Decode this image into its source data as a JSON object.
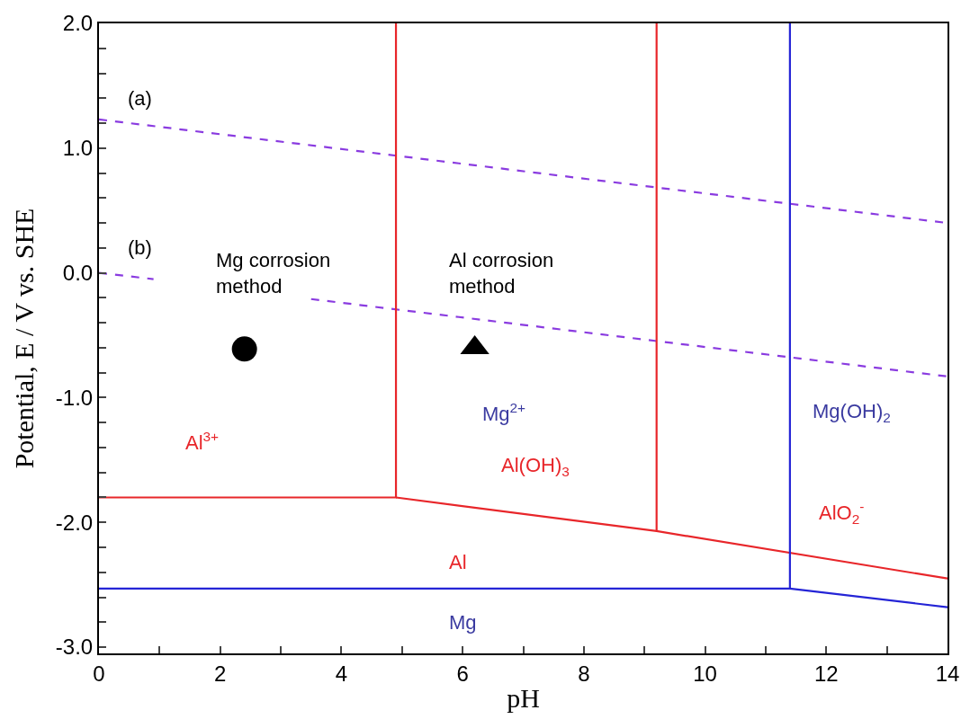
{
  "chart_data": {
    "type": "line",
    "xlabel": "pH",
    "ylabel": "Potential, E / V vs. SHE",
    "xlim": [
      0,
      14
    ],
    "ylim": [
      -3.05,
      2.0
    ],
    "xticks": [
      0,
      {
        "value": 1,
        "label": null
      },
      2,
      {
        "value": 3,
        "label": null
      },
      4,
      {
        "value": 5,
        "label": null
      },
      6,
      {
        "value": 7,
        "label": null
      },
      8,
      {
        "value": 9,
        "label": null
      },
      10,
      {
        "value": 11,
        "label": null
      },
      12,
      {
        "value": 13,
        "label": null
      },
      14
    ],
    "yticks": [
      {
        "value": -3.0,
        "label": "-3.0"
      },
      {
        "value": -2.8,
        "label": null
      },
      {
        "value": -2.6,
        "label": null
      },
      {
        "value": -2.4,
        "label": null
      },
      {
        "value": -2.2,
        "label": null
      },
      {
        "value": -2.0,
        "label": "-2.0"
      },
      {
        "value": -1.8,
        "label": null
      },
      {
        "value": -1.6,
        "label": null
      },
      {
        "value": -1.4,
        "label": null
      },
      {
        "value": -1.2,
        "label": null
      },
      {
        "value": -1.0,
        "label": "-1.0"
      },
      {
        "value": -0.8,
        "label": null
      },
      {
        "value": -0.6,
        "label": null
      },
      {
        "value": -0.4,
        "label": null
      },
      {
        "value": -0.2,
        "label": null
      },
      {
        "value": 0.0,
        "label": "0.0"
      },
      {
        "value": 0.2,
        "label": null
      },
      {
        "value": 0.4,
        "label": null
      },
      {
        "value": 0.6,
        "label": null
      },
      {
        "value": 0.8,
        "label": null
      },
      {
        "value": 1.0,
        "label": "1.0"
      },
      {
        "value": 1.2,
        "label": null
      },
      {
        "value": 1.4,
        "label": null
      },
      {
        "value": 1.6,
        "label": null
      },
      {
        "value": 1.8,
        "label": null
      },
      {
        "value": 2.0,
        "label": "2.0"
      }
    ],
    "series": [
      {
        "color": "#8a3be0",
        "line_style": "dashed",
        "x": [
          0,
          14
        ],
        "values": [
          1.23,
          0.4
        ]
      },
      {
        "color": "#8a3be0",
        "line_style": "dashed",
        "x": [
          0,
          0.9,
          2.2,
          3.5,
          14
        ],
        "values": [
          0.0,
          -0.05,
          null,
          -0.21,
          -0.83
        ]
      },
      {
        "color": "#e8262a",
        "x": [
          0,
          4.9,
          4.9
        ],
        "values": [
          -1.8,
          -1.8,
          2.0
        ]
      },
      {
        "color": "#e8262a",
        "x": [
          4.9,
          9.2,
          14
        ],
        "values": [
          -1.8,
          -2.07,
          -2.45
        ]
      },
      {
        "color": "#e8262a",
        "x": [
          9.2,
          9.2
        ],
        "values": [
          -2.07,
          2.0
        ]
      },
      {
        "color": "#2424d6",
        "x": [
          0,
          11.4,
          14
        ],
        "values": [
          -2.53,
          -2.53,
          -2.68
        ]
      },
      {
        "color": "#2424d6",
        "x": [
          11.4,
          11.4
        ],
        "values": [
          -2.53,
          2.0
        ]
      },
      {
        "type": "scatter",
        "marker": "circle",
        "color": "#000000",
        "x": [
          2.4
        ],
        "values": [
          -0.61
        ]
      },
      {
        "type": "scatter",
        "marker": "triangle",
        "color": "#000000",
        "x": [
          6.2
        ],
        "values": [
          -0.6
        ]
      }
    ],
    "annotations": [
      "(a)",
      "(b)",
      "Mg corrosion\nmethod",
      "Al corrosion\nmethod",
      "Al$^{3+}$",
      "Mg$^{2+}$",
      "Al(OH)$_{3}$",
      "Mg(OH)$_{2}$",
      "AlO$_{2}$$^{-}$",
      "Al",
      "Mg"
    ]
  }
}
